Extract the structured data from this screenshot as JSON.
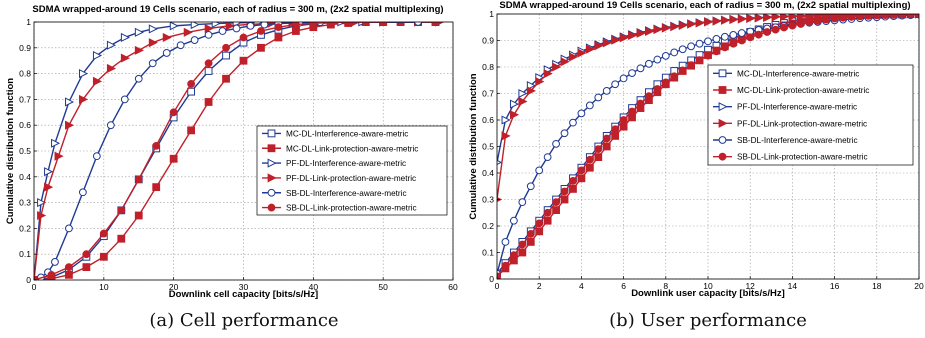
{
  "captions": [
    "(a)  Cell performance",
    "(b)  User performance"
  ],
  "chart_data": [
    {
      "type": "line",
      "title": "SDMA wrapped-around 19 Cells scenario, each of radius = 300 m, (2x2 spatial multiplexing)",
      "xlabel": "Downlink cell capacity [bits/s/Hz]",
      "ylabel": "Cumulative distribution function",
      "xlim": [
        0,
        60
      ],
      "ylim": [
        0,
        1
      ],
      "xticks": [
        0,
        10,
        20,
        30,
        40,
        50,
        60
      ],
      "yticks": [
        0,
        0.1,
        0.2,
        0.3,
        0.4,
        0.5,
        0.6,
        0.7,
        0.8,
        0.9,
        1
      ],
      "grid": true,
      "legend_position": "center-right",
      "series": [
        {
          "name": "MC-DL-Interference-aware-metric",
          "color": "#1f3a93",
          "marker": "square",
          "filled": false,
          "x": [
            0,
            2.5,
            5,
            7.5,
            10,
            12.5,
            15,
            17.5,
            20,
            22.5,
            25,
            27.5,
            30,
            32.5,
            35,
            37.5,
            40,
            42.5,
            45,
            47.5,
            50,
            52.5,
            55,
            57.5
          ],
          "y": [
            0,
            0.01,
            0.04,
            0.09,
            0.17,
            0.27,
            0.39,
            0.51,
            0.63,
            0.73,
            0.81,
            0.87,
            0.92,
            0.95,
            0.97,
            0.985,
            0.993,
            0.997,
            1,
            1,
            1,
            1,
            1,
            1
          ]
        },
        {
          "name": "MC-DL-Link-protection-aware-metric",
          "color": "#c0202a",
          "marker": "square",
          "filled": true,
          "x": [
            0,
            2.5,
            5,
            7.5,
            10,
            12.5,
            15,
            17.5,
            20,
            22.5,
            25,
            27.5,
            30,
            32.5,
            35,
            37.5,
            40,
            42.5,
            45,
            47.5,
            50,
            52.5,
            55,
            57.5
          ],
          "y": [
            0,
            0.005,
            0.02,
            0.05,
            0.09,
            0.16,
            0.25,
            0.36,
            0.47,
            0.58,
            0.69,
            0.78,
            0.85,
            0.9,
            0.94,
            0.965,
            0.98,
            0.99,
            0.996,
            1,
            1,
            1,
            1,
            1
          ]
        },
        {
          "name": "PF-DL-Interference-aware-metric",
          "color": "#1f3a93",
          "marker": "triangle-right",
          "filled": false,
          "x": [
            0,
            1,
            2,
            3,
            5,
            7,
            9,
            11,
            13,
            15,
            17,
            20,
            23,
            26,
            29,
            32,
            35,
            38,
            41,
            44,
            47,
            50,
            55,
            58
          ],
          "y": [
            0,
            0.3,
            0.42,
            0.53,
            0.69,
            0.8,
            0.87,
            0.91,
            0.94,
            0.96,
            0.973,
            0.985,
            0.99,
            0.994,
            0.997,
            0.998,
            0.999,
            1,
            1,
            1,
            1,
            1,
            1,
            1
          ]
        },
        {
          "name": "PF-DL-Link-protection-aware-metric",
          "color": "#c0202a",
          "marker": "triangle-right",
          "filled": true,
          "x": [
            0,
            1,
            2,
            3.5,
            5,
            7,
            9,
            11,
            13,
            15,
            17,
            19,
            22,
            25,
            28,
            31,
            34,
            37,
            40,
            43,
            46,
            50,
            55,
            58
          ],
          "y": [
            0,
            0.25,
            0.36,
            0.48,
            0.6,
            0.7,
            0.77,
            0.82,
            0.86,
            0.89,
            0.92,
            0.94,
            0.96,
            0.975,
            0.985,
            0.991,
            0.995,
            0.998,
            1,
            1,
            1,
            1,
            1,
            1
          ]
        },
        {
          "name": "SB-DL-Interference-aware-metric",
          "color": "#1f3a93",
          "marker": "circle",
          "filled": false,
          "x": [
            0,
            1,
            2,
            3,
            5,
            7,
            9,
            11,
            13,
            15,
            17,
            19,
            21,
            23,
            25,
            27,
            29,
            31,
            33,
            35,
            38,
            41,
            45,
            50,
            55
          ],
          "y": [
            0,
            0.01,
            0.03,
            0.07,
            0.2,
            0.34,
            0.48,
            0.6,
            0.7,
            0.78,
            0.84,
            0.88,
            0.91,
            0.93,
            0.95,
            0.965,
            0.975,
            0.985,
            0.99,
            0.994,
            0.997,
            0.999,
            1,
            1,
            1
          ]
        },
        {
          "name": "SB-DL-Link-protection-aware-metric",
          "color": "#c0202a",
          "marker": "circle",
          "filled": true,
          "x": [
            0,
            2.5,
            5,
            7.5,
            10,
            12.5,
            15,
            17.5,
            20,
            22.5,
            25,
            27.5,
            30,
            32.5,
            35,
            37.5,
            40,
            42.5,
            45,
            47.5,
            50
          ],
          "y": [
            0,
            0.02,
            0.05,
            0.1,
            0.18,
            0.27,
            0.39,
            0.52,
            0.65,
            0.76,
            0.84,
            0.9,
            0.94,
            0.965,
            0.98,
            0.99,
            0.995,
            0.998,
            1,
            1,
            1
          ]
        }
      ]
    },
    {
      "type": "line",
      "title": "SDMA wrapped-around 19 Cells scenario, each of radius = 300 m, (2x2 spatial multiplexing)",
      "xlabel": "Downlink user capacity [bits/s/Hz]",
      "ylabel": "Cumulative distribution function",
      "xlim": [
        0,
        20
      ],
      "ylim": [
        0,
        1
      ],
      "xticks": [
        0,
        2,
        4,
        6,
        8,
        10,
        12,
        14,
        16,
        18,
        20
      ],
      "yticks": [
        0,
        0.1,
        0.2,
        0.3,
        0.4,
        0.5,
        0.6,
        0.7,
        0.8,
        0.9,
        1
      ],
      "grid": true,
      "legend_position": "center-right",
      "series": [
        {
          "name": "MC-DL-Interference-aware-metric",
          "color": "#1f3a93",
          "marker": "square",
          "filled": false,
          "x": [
            0,
            0.4,
            0.8,
            1.2,
            1.6,
            2,
            2.4,
            2.8,
            3.2,
            3.6,
            4,
            4.4,
            4.8,
            5.2,
            5.6,
            6,
            6.4,
            6.8,
            7.2,
            7.6,
            8,
            8.4,
            8.8,
            9.2,
            9.6,
            10,
            10.4,
            10.8,
            11.2,
            11.6,
            12,
            12.4,
            12.8,
            13.2,
            13.6,
            14,
            14.4,
            14.8,
            15.2,
            15.6,
            16,
            16.4,
            16.8,
            17.2,
            17.6,
            18,
            18.4,
            18.8,
            19.2,
            19.6,
            20
          ],
          "y": [
            0.02,
            0.06,
            0.1,
            0.14,
            0.18,
            0.22,
            0.26,
            0.3,
            0.34,
            0.38,
            0.42,
            0.46,
            0.5,
            0.54,
            0.575,
            0.61,
            0.645,
            0.675,
            0.705,
            0.735,
            0.76,
            0.785,
            0.805,
            0.825,
            0.845,
            0.865,
            0.88,
            0.895,
            0.908,
            0.92,
            0.932,
            0.942,
            0.951,
            0.959,
            0.966,
            0.972,
            0.977,
            0.981,
            0.985,
            0.988,
            0.99,
            0.992,
            0.994,
            0.995,
            0.996,
            0.997,
            0.998,
            0.999,
            0.999,
            1,
            1
          ]
        },
        {
          "name": "MC-DL-Link-protection-aware-metric",
          "color": "#c0202a",
          "marker": "square",
          "filled": true,
          "x": [
            0,
            0.4,
            0.8,
            1.2,
            1.6,
            2,
            2.4,
            2.8,
            3.2,
            3.6,
            4,
            4.4,
            4.8,
            5.2,
            5.6,
            6,
            6.4,
            6.8,
            7.2,
            7.6,
            8,
            8.4,
            8.8,
            9.2,
            9.6,
            10,
            10.4,
            10.8,
            11.2,
            11.6,
            12,
            12.4,
            12.8,
            13.2,
            13.6,
            14,
            14.4,
            14.8,
            15.2,
            15.6,
            16,
            16.4,
            16.8,
            17.2,
            17.6,
            18,
            18.4,
            18.8,
            19.2,
            19.6,
            20
          ],
          "y": [
            0.01,
            0.04,
            0.07,
            0.1,
            0.14,
            0.18,
            0.22,
            0.26,
            0.3,
            0.34,
            0.38,
            0.42,
            0.46,
            0.5,
            0.54,
            0.575,
            0.61,
            0.645,
            0.675,
            0.705,
            0.735,
            0.76,
            0.785,
            0.805,
            0.825,
            0.845,
            0.862,
            0.878,
            0.893,
            0.906,
            0.918,
            0.93,
            0.94,
            0.949,
            0.957,
            0.964,
            0.97,
            0.975,
            0.98,
            0.984,
            0.987,
            0.99,
            0.992,
            0.994,
            0.995,
            0.996,
            0.997,
            0.998,
            0.999,
            1,
            1
          ]
        },
        {
          "name": "PF-DL-Interference-aware-metric",
          "color": "#1f3a93",
          "marker": "triangle-right",
          "filled": false,
          "x": [
            0,
            0.4,
            0.8,
            1.2,
            1.6,
            2,
            2.4,
            2.8,
            3.2,
            3.6,
            4,
            4.4,
            4.8,
            5.2,
            5.6,
            6,
            6.4,
            6.8,
            7.2,
            7.6,
            8,
            8.4,
            8.8,
            9.2,
            9.6,
            10,
            10.4,
            10.8,
            11.2,
            11.6,
            12,
            12.4,
            12.8,
            13.2,
            13.6,
            14,
            14.4,
            14.8,
            15.2,
            15.6,
            16,
            16.4,
            16.8,
            17.2,
            17.6,
            18,
            18.4,
            18.8,
            19.2,
            19.6,
            20
          ],
          "y": [
            0.44,
            0.6,
            0.66,
            0.7,
            0.73,
            0.76,
            0.79,
            0.81,
            0.83,
            0.845,
            0.86,
            0.872,
            0.884,
            0.895,
            0.905,
            0.914,
            0.922,
            0.93,
            0.937,
            0.943,
            0.949,
            0.954,
            0.959,
            0.963,
            0.967,
            0.971,
            0.974,
            0.977,
            0.98,
            0.982,
            0.984,
            0.986,
            0.988,
            0.99,
            0.991,
            0.992,
            0.993,
            0.994,
            0.995,
            0.996,
            0.997,
            0.997,
            0.998,
            0.998,
            0.999,
            0.999,
            0.999,
            1,
            1,
            1,
            1
          ]
        },
        {
          "name": "PF-DL-Link-protection-aware-metric",
          "color": "#c0202a",
          "marker": "triangle-right",
          "filled": true,
          "x": [
            0,
            0.4,
            0.8,
            1.2,
            1.6,
            2,
            2.4,
            2.8,
            3.2,
            3.6,
            4,
            4.4,
            4.8,
            5.2,
            5.6,
            6,
            6.4,
            6.8,
            7.2,
            7.6,
            8,
            8.4,
            8.8,
            9.2,
            9.6,
            10,
            10.4,
            10.8,
            11.2,
            11.6,
            12,
            12.4,
            12.8,
            13.2,
            13.6,
            14,
            14.4,
            14.8,
            15.2,
            15.6,
            16,
            16.4,
            16.8,
            17.2,
            17.6,
            18,
            18.4,
            18.8,
            19.2,
            19.6,
            20
          ],
          "y": [
            0.3,
            0.54,
            0.62,
            0.67,
            0.71,
            0.745,
            0.775,
            0.8,
            0.82,
            0.838,
            0.853,
            0.867,
            0.88,
            0.891,
            0.901,
            0.91,
            0.919,
            0.927,
            0.934,
            0.941,
            0.947,
            0.952,
            0.957,
            0.962,
            0.966,
            0.97,
            0.973,
            0.976,
            0.979,
            0.981,
            0.983,
            0.985,
            0.987,
            0.989,
            0.99,
            0.991,
            0.992,
            0.993,
            0.994,
            0.995,
            0.996,
            0.997,
            0.997,
            0.998,
            0.998,
            0.999,
            0.999,
            1,
            1,
            1,
            1
          ]
        },
        {
          "name": "SB-DL-Interference-aware-metric",
          "color": "#1f3a93",
          "marker": "circle",
          "filled": false,
          "x": [
            0,
            0.4,
            0.8,
            1.2,
            1.6,
            2,
            2.4,
            2.8,
            3.2,
            3.6,
            4,
            4.4,
            4.8,
            5.2,
            5.6,
            6,
            6.4,
            6.8,
            7.2,
            7.6,
            8,
            8.4,
            8.8,
            9.2,
            9.6,
            10,
            10.4,
            10.8,
            11.2,
            11.6,
            12,
            12.4,
            12.8,
            13.2,
            13.6,
            14,
            14.4,
            14.8,
            15.2,
            15.6,
            16,
            16.4,
            16.8,
            17.2,
            17.6,
            18,
            18.4,
            18.8,
            19.2,
            19.6,
            20
          ],
          "y": [
            0.02,
            0.14,
            0.22,
            0.29,
            0.35,
            0.41,
            0.46,
            0.51,
            0.55,
            0.59,
            0.625,
            0.655,
            0.685,
            0.71,
            0.735,
            0.757,
            0.777,
            0.795,
            0.812,
            0.828,
            0.842,
            0.855,
            0.867,
            0.878,
            0.888,
            0.897,
            0.906,
            0.914,
            0.921,
            0.928,
            0.934,
            0.94,
            0.945,
            0.95,
            0.955,
            0.959,
            0.963,
            0.967,
            0.97,
            0.973,
            0.976,
            0.979,
            0.981,
            0.984,
            0.986,
            0.988,
            0.99,
            0.992,
            0.994,
            0.996,
            0.998
          ]
        },
        {
          "name": "SB-DL-Link-protection-aware-metric",
          "color": "#c0202a",
          "marker": "circle",
          "filled": true,
          "x": [
            0,
            0.4,
            0.8,
            1.2,
            1.6,
            2,
            2.4,
            2.8,
            3.2,
            3.6,
            4,
            4.4,
            4.8,
            5.2,
            5.6,
            6,
            6.4,
            6.8,
            7.2,
            7.6,
            8,
            8.4,
            8.8,
            9.2,
            9.6,
            10,
            10.4,
            10.8,
            11.2,
            11.6,
            12,
            12.4,
            12.8,
            13.2,
            13.6,
            14,
            14.4,
            14.8,
            15.2,
            15.6,
            16,
            16.4,
            16.8,
            17.2,
            17.6,
            18,
            18.4,
            18.8,
            19.2,
            19.6,
            20
          ],
          "y": [
            0.01,
            0.05,
            0.09,
            0.13,
            0.17,
            0.21,
            0.25,
            0.29,
            0.33,
            0.37,
            0.41,
            0.45,
            0.49,
            0.53,
            0.565,
            0.6,
            0.632,
            0.662,
            0.69,
            0.717,
            0.742,
            0.765,
            0.787,
            0.807,
            0.826,
            0.843,
            0.859,
            0.874,
            0.888,
            0.9,
            0.912,
            0.922,
            0.932,
            0.941,
            0.949,
            0.956,
            0.963,
            0.969,
            0.974,
            0.979,
            0.983,
            0.986,
            0.989,
            0.991,
            0.993,
            0.995,
            0.996,
            0.997,
            0.998,
            0.999,
            1
          ]
        }
      ]
    }
  ]
}
